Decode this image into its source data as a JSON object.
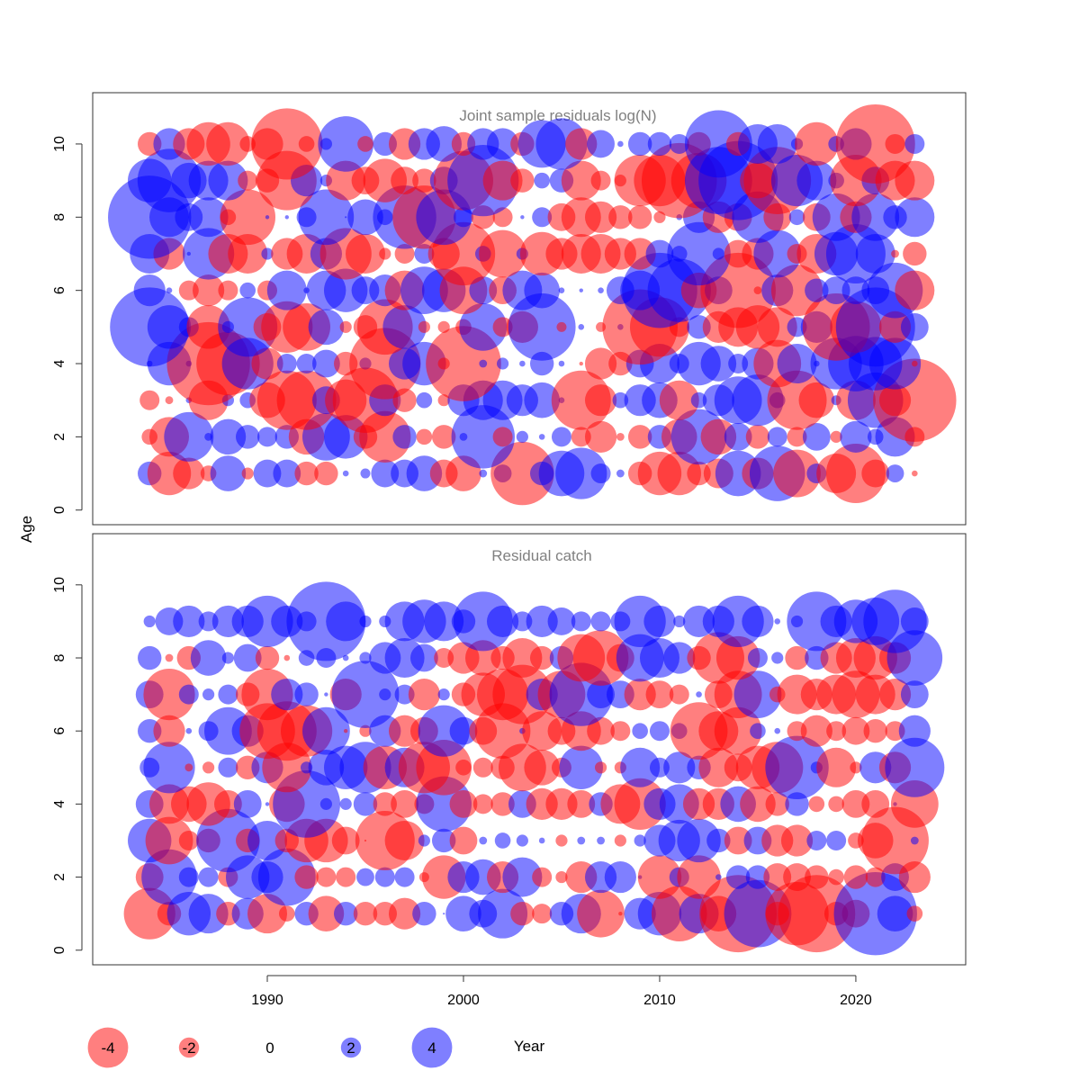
{
  "chart_data": {
    "type": "scatter",
    "subtype": "bubble",
    "xlabel": "Year",
    "ylabel": "Age",
    "xticks": [
      1990,
      2000,
      2010,
      2020
    ],
    "yticks": [
      0,
      2,
      4,
      6,
      8,
      10
    ],
    "xlim": [
      1981.1,
      2025.6
    ],
    "ylim": [
      -0.4,
      11.4
    ],
    "colors": {
      "negative": "#ff0000",
      "positive": "#0000ff",
      "frame": "#333333",
      "title": "#808080"
    },
    "legend": [
      {
        "label": "-4",
        "value": -4
      },
      {
        "label": "-2",
        "value": -2
      },
      {
        "label": "0",
        "value": 0
      },
      {
        "label": "2",
        "value": 2
      },
      {
        "label": "4",
        "value": 4
      }
    ],
    "panels": [
      {
        "title": "Joint sample residuals log(N)",
        "opacity": 0.5,
        "years": [
          1984,
          1985,
          1986,
          1987,
          1988,
          1989,
          1990,
          1991,
          1992,
          1993,
          1994,
          1995,
          1996,
          1997,
          1998,
          1999,
          2000,
          2001,
          2002,
          2003,
          2004,
          2005,
          2006,
          2007,
          2008,
          2009,
          2010,
          2011,
          2012,
          2013,
          2014,
          2015,
          2016,
          2017,
          2018,
          2019,
          2020,
          2021,
          2022,
          2023
        ],
        "ages": [
          1,
          2,
          3,
          4,
          5,
          6,
          7,
          8,
          9,
          10
        ],
        "residuals": [
          [
            1.2,
            -2.2,
            -1.6,
            -0.8,
            1.8,
            -0.6,
            1.4,
            1.4,
            -1.2,
            -1.2,
            0.3,
            0.5,
            1.4,
            1.4,
            1.8,
            -1.4,
            -1.8,
            0.4,
            0.9,
            -3.2,
            1.2,
            2.3,
            2.6,
            1.0,
            0.4,
            -1.2,
            -2.2,
            -2.2,
            -1.2,
            -1.5,
            2.3,
            -1.6,
            2.8,
            -2.4,
            1.0,
            -2.0,
            -3.0,
            -1.4,
            0.9,
            -0.3
          ],
          [
            -0.8,
            -2.0,
            2.5,
            0.4,
            1.8,
            1.2,
            1.0,
            1.2,
            -1.8,
            2.4,
            2.2,
            -1.2,
            -2.6,
            1.2,
            -0.8,
            -1.2,
            0.4,
            3.2,
            -1.0,
            0.6,
            0.3,
            1.0,
            -1.0,
            -1.6,
            -0.4,
            -1.2,
            1.2,
            -1.8,
            2.8,
            -1.8,
            1.4,
            -1.2,
            1.0,
            -1.0,
            1.4,
            -0.6,
            1.6,
            0.8,
            2.0,
            -1.0
          ],
          [
            -1.0,
            -0.4,
            0.3,
            -2.0,
            0.6,
            0.8,
            -1.8,
            -3.0,
            -3.0,
            1.4,
            -2.1,
            -3.3,
            1.6,
            -1.2,
            0.8,
            -0.6,
            1.6,
            2.0,
            2.0,
            1.6,
            1.8,
            0.3,
            -3.0,
            -1.6,
            0.8,
            1.6,
            1.8,
            -2.0,
            0.8,
            1.6,
            2.4,
            2.6,
            0.8,
            -3.0,
            -1.8,
            0.5,
            -2.0,
            2.8,
            -1.6,
            -4.2
          ],
          [
            0.3,
            2.2,
            0.3,
            -4.2,
            -3.2,
            2.6,
            -1.6,
            1.0,
            1.0,
            1.4,
            -1.2,
            0.6,
            -3.6,
            1.6,
            2.2,
            -0.6,
            -3.8,
            0.4,
            0.6,
            0.3,
            1.2,
            0.3,
            -0.2,
            -1.6,
            -1.2,
            1.4,
            2.0,
            1.0,
            2.2,
            1.8,
            1.0,
            1.6,
            -2.4,
            2.0,
            0.3,
            2.6,
            2.8,
            2.7,
            2.6,
            -0.3
          ],
          [
            4.0,
            2.2,
            1.0,
            -2.2,
            0.6,
            3.0,
            -1.4,
            -2.6,
            -2.4,
            1.8,
            -0.6,
            -1.2,
            -2.8,
            2.2,
            -0.6,
            -0.6,
            -0.8,
            2.4,
            -1.0,
            -1.6,
            3.4,
            -0.5,
            0.3,
            -0.5,
            0.3,
            -3.8,
            -3.0,
            -1.0,
            1.2,
            -1.6,
            -2.0,
            -2.2,
            -2.0,
            1.0,
            1.6,
            -3.4,
            -2.6,
            4.0,
            -1.6,
            1.4
          ],
          [
            1.6,
            0.3,
            -1.0,
            -1.6,
            -1.0,
            0.8,
            -1.0,
            2.0,
            0.3,
            2.0,
            2.2,
            1.4,
            1.6,
            -2.0,
            2.4,
            2.2,
            -2.4,
            1.4,
            -1.4,
            2.0,
            1.8,
            0.3,
            0.2,
            0.3,
            1.4,
            2.0,
            3.8,
            3.2,
            -1.8,
            1.4,
            -3.8,
            -0.4,
            1.6,
            -2.6,
            1.2,
            1.4,
            1.4,
            1.4,
            2.8,
            -2.0
          ],
          [
            2.0,
            -1.6,
            0.2,
            2.6,
            -2.0,
            -2.0,
            0.6,
            -1.6,
            -2.0,
            1.6,
            -2.6,
            -2.0,
            -0.6,
            -1.0,
            1.0,
            -1.6,
            -3.2,
            0.8,
            -2.4,
            0.6,
            -2.2,
            -1.6,
            -2.0,
            -2.0,
            -1.6,
            -1.6,
            1.4,
            0.8,
            3.2,
            0.6,
            -1.4,
            -1.6,
            2.4,
            -1.0,
            -2.0,
            2.2,
            3.0,
            2.0,
            -0.4,
            -1.2
          ],
          [
            4.2,
            2.0,
            1.4,
            2.0,
            -0.8,
            -2.8,
            0.2,
            0.2,
            1.0,
            2.8,
            0.1,
            1.8,
            0.8,
            3.2,
            -3.2,
            2.8,
            1.0,
            -1.2,
            -1.0,
            0.2,
            1.0,
            -1.4,
            -2.0,
            -1.6,
            -1.2,
            -1.2,
            -0.6,
            0.3,
            1.6,
            -1.6,
            -1.4,
            2.6,
            -1.4,
            0.8,
            -1.4,
            2.4,
            -1.6,
            2.4,
            1.2,
            2.0
          ],
          [
            2.2,
            3.2,
            1.8,
            2.0,
            2.0,
            -1.0,
            -1.2,
            -3.0,
            1.6,
            0.6,
            -2.0,
            -1.4,
            -2.2,
            -1.4,
            -1.2,
            1.4,
            -3.0,
            3.6,
            -2.0,
            -1.2,
            0.8,
            1.2,
            -2.0,
            -1.0,
            -0.6,
            -2.6,
            -2.6,
            -3.8,
            -2.8,
            3.4,
            4.0,
            -1.8,
            -3.4,
            2.6,
            2.0,
            0.8,
            -2.6,
            1.4,
            -2.0,
            -2.0
          ],
          [
            -1.2,
            1.6,
            -1.6,
            -2.2,
            -2.2,
            -0.8,
            -1.6,
            -3.6,
            -0.8,
            0.6,
            2.8,
            -0.8,
            1.2,
            -1.6,
            1.6,
            1.8,
            -1.2,
            1.6,
            1.6,
            -1.2,
            2.4,
            2.6,
            -1.6,
            1.4,
            0.3,
            1.2,
            1.2,
            1.0,
            -1.2,
            3.4,
            -1.2,
            2.0,
            2.0,
            0.6,
            -2.2,
            0.8,
            1.6,
            -4.0,
            -1.0,
            1.0
          ]
        ]
      },
      {
        "title": "Residual catch",
        "opacity": 0.5,
        "years": [
          1984,
          1985,
          1986,
          1987,
          1988,
          1989,
          1990,
          1991,
          1992,
          1993,
          1994,
          1995,
          1996,
          1997,
          1998,
          1999,
          2000,
          2001,
          2002,
          2003,
          2004,
          2005,
          2006,
          2007,
          2008,
          2009,
          2010,
          2011,
          2012,
          2013,
          2014,
          2015,
          2016,
          2017,
          2018,
          2019,
          2020,
          2021,
          2022,
          2023
        ],
        "ages": [
          1,
          2,
          3,
          4,
          5,
          6,
          7,
          8,
          9
        ],
        "residuals": [
          [
            -2.6,
            -1.2,
            2.2,
            2.0,
            -1.2,
            1.6,
            -2.0,
            -0.8,
            1.2,
            -1.8,
            1.2,
            -1.2,
            -1.2,
            -1.6,
            1.2,
            0.1,
            1.8,
            1.4,
            2.5,
            -1.2,
            -1.0,
            1.2,
            2.0,
            -2.4,
            -0.2,
            1.6,
            2.2,
            -2.8,
            2.0,
            -1.8,
            -3.9,
            3.4,
            -1.2,
            -3.2,
            -3.9,
            -1.2,
            -1.4,
            4.2,
            1.8,
            -0.8
          ],
          [
            -1.4,
            2.8,
            1.0,
            1.0,
            -1.0,
            2.2,
            1.6,
            2.9,
            -1.2,
            -1.0,
            -1.0,
            0.9,
            1.0,
            1.0,
            -0.5,
            -2.2,
            1.6,
            1.8,
            -1.6,
            2.0,
            -1.0,
            -0.6,
            -1.6,
            1.6,
            1.6,
            0.2,
            -2.2,
            1.0,
            -2.2,
            0.3,
            1.2,
            1.2,
            -1.4,
            -1.4,
            -1.2,
            -0.8,
            -1.2,
            -1.0,
            1.4,
            -1.6
          ],
          [
            2.2,
            -2.4,
            -1.0,
            -1.2,
            3.2,
            -1.2,
            2.0,
            -1.2,
            -2.2,
            -2.2,
            -1.4,
            -0.1,
            -3.0,
            -2.0,
            0.6,
            1.2,
            -1.4,
            0.4,
            0.8,
            0.6,
            0.3,
            -0.6,
            0.4,
            0.4,
            -0.6,
            0.6,
            1.6,
            2.1,
            2.2,
            1.2,
            -1.4,
            1.4,
            -1.6,
            -1.6,
            1.0,
            1.0,
            -0.8,
            -1.8,
            -3.4,
            0.4
          ],
          [
            1.4,
            -2.0,
            -1.8,
            -2.2,
            -1.4,
            1.4,
            0.2,
            -1.8,
            3.4,
            0.6,
            0.6,
            1.2,
            -1.2,
            -1.4,
            -1.0,
            2.8,
            -1.4,
            -1.0,
            -1.2,
            1.4,
            -1.6,
            -1.6,
            -1.4,
            1.2,
            -2.0,
            -2.6,
            1.6,
            2.0,
            -1.6,
            -1.6,
            1.8,
            -1.8,
            -1.2,
            1.2,
            -0.8,
            -0.8,
            -1.4,
            -1.4,
            0.2,
            -2.4
          ],
          [
            1.0,
            2.6,
            -0.4,
            -0.6,
            1.0,
            -1.2,
            1.6,
            -2.5,
            0.6,
            1.8,
            2.2,
            2.6,
            -2.2,
            2.0,
            -2.6,
            -2.8,
            -0.8,
            -1.0,
            -1.2,
            -2.4,
            -1.8,
            -1.0,
            2.2,
            -0.6,
            -0.6,
            2.0,
            1.0,
            1.6,
            1.2,
            -2.0,
            -1.4,
            -2.2,
            -2.6,
            3.2,
            0.6,
            -2.0,
            -0.6,
            1.6,
            -1.6,
            3.0
          ],
          [
            1.2,
            -1.6,
            0.3,
            1.0,
            2.4,
            1.6,
            -2.8,
            -3.0,
            -2.6,
            2.4,
            -0.2,
            -0.6,
            1.6,
            -1.6,
            -1.4,
            2.6,
            1.4,
            -1.4,
            -2.8,
            0.3,
            -2.0,
            -1.4,
            -2.0,
            -1.4,
            -1.0,
            0.8,
            1.0,
            0.8,
            -2.9,
            -2.0,
            -2.4,
            0.8,
            0.3,
            -1.0,
            -1.6,
            -1.0,
            -1.4,
            -1.2,
            -1.0,
            1.6
          ],
          [
            1.4,
            -2.6,
            1.0,
            0.6,
            1.0,
            -1.2,
            -2.6,
            1.6,
            1.2,
            0.2,
            -1.6,
            3.4,
            0.6,
            1.0,
            -1.6,
            0.6,
            -1.2,
            -2.2,
            -2.6,
            -3.0,
            1.6,
            -2.4,
            3.2,
            1.4,
            1.4,
            -1.6,
            -1.4,
            -1.0,
            0.3,
            -1.4,
            -2.4,
            2.4,
            -0.8,
            -2.0,
            -1.6,
            -2.0,
            -2.4,
            -2.0,
            -1.6,
            1.4
          ],
          [
            1.2,
            -0.4,
            -1.2,
            1.8,
            0.6,
            1.4,
            -1.2,
            -0.3,
            0.8,
            1.0,
            0.3,
            0.6,
            1.6,
            2.0,
            1.4,
            -1.0,
            -1.6,
            -1.8,
            -1.2,
            -2.0,
            -1.2,
            1.2,
            -2.4,
            -2.8,
            -1.4,
            2.4,
            2.0,
            1.6,
            -1.2,
            -2.6,
            -2.2,
            1.0,
            0.6,
            -1.2,
            1.2,
            -1.6,
            -2.0,
            -2.2,
            -1.6,
            2.8
          ],
          [
            0.6,
            1.4,
            1.6,
            1.0,
            1.6,
            1.6,
            2.6,
            1.6,
            1.0,
            4.0,
            2.0,
            0.6,
            0.6,
            2.0,
            2.2,
            2.0,
            1.2,
            3.0,
            1.6,
            1.0,
            1.6,
            1.4,
            1.0,
            1.0,
            1.0,
            2.6,
            1.6,
            0.6,
            1.6,
            1.6,
            2.6,
            1.6,
            0.3,
            0.6,
            3.0,
            1.6,
            2.2,
            2.4,
            3.2,
            1.4
          ]
        ]
      }
    ]
  }
}
